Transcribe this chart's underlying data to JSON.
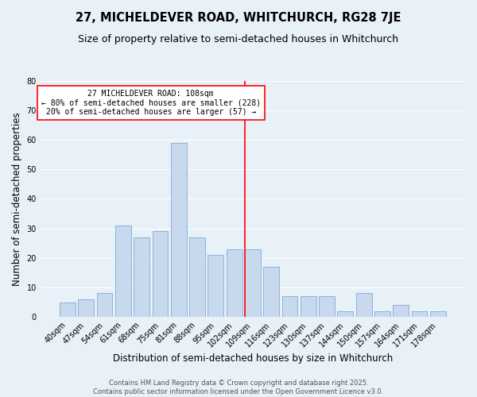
{
  "title": "27, MICHELDEVER ROAD, WHITCHURCH, RG28 7JE",
  "subtitle": "Size of property relative to semi-detached houses in Whitchurch",
  "xlabel": "Distribution of semi-detached houses by size in Whitchurch",
  "ylabel": "Number of semi-detached properties",
  "bar_color": "#c8d9ee",
  "bar_edge_color": "#7aaed6",
  "background_color": "#e8f0f8",
  "grid_color": "#ffffff",
  "categories": [
    "40sqm",
    "47sqm",
    "54sqm",
    "61sqm",
    "68sqm",
    "75sqm",
    "81sqm",
    "88sqm",
    "95sqm",
    "102sqm",
    "109sqm",
    "116sqm",
    "123sqm",
    "130sqm",
    "137sqm",
    "144sqm",
    "150sqm",
    "157sqm",
    "164sqm",
    "171sqm",
    "178sqm"
  ],
  "values": [
    5,
    6,
    8,
    31,
    27,
    29,
    59,
    27,
    21,
    23,
    23,
    17,
    7,
    7,
    7,
    2,
    8,
    2,
    4,
    2,
    2
  ],
  "ylim": [
    0,
    80
  ],
  "yticks": [
    0,
    10,
    20,
    30,
    40,
    50,
    60,
    70,
    80
  ],
  "annotation_line1": "27 MICHELDEVER ROAD: 108sqm",
  "annotation_line2": "← 80% of semi-detached houses are smaller (228)",
  "annotation_line3": "20% of semi-detached houses are larger (57) →",
  "footer_line1": "Contains HM Land Registry data © Crown copyright and database right 2025.",
  "footer_line2": "Contains public sector information licensed under the Open Government Licence v3.0.",
  "title_fontsize": 10.5,
  "subtitle_fontsize": 9,
  "axis_label_fontsize": 8.5,
  "tick_fontsize": 7,
  "annotation_fontsize": 7,
  "footer_fontsize": 6
}
